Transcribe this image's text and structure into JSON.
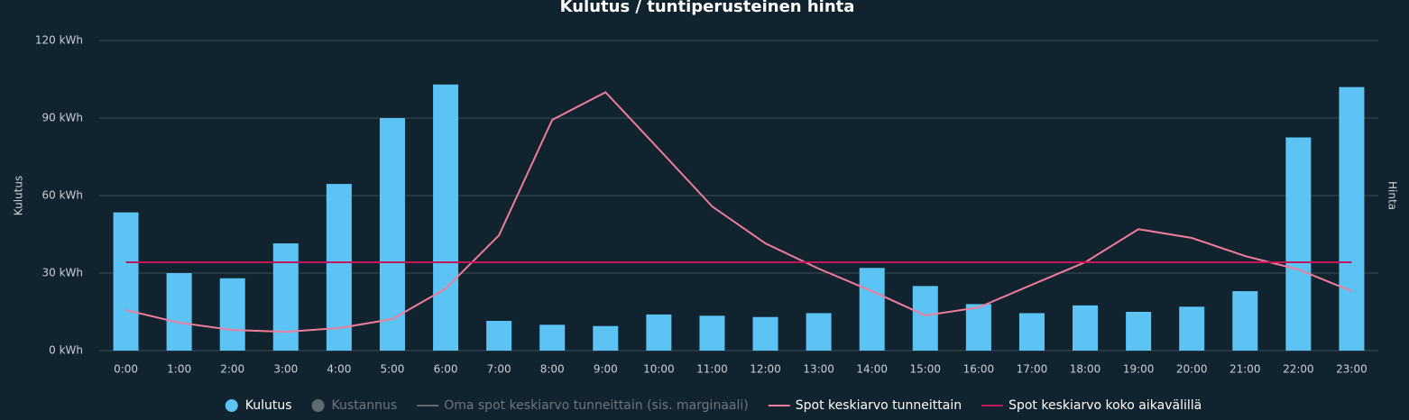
{
  "chart_data": {
    "type": "bar",
    "title": "Kulutus / tuntiperusteinen hinta",
    "y_label": "Kulutus",
    "y2_label": "Hinta",
    "categories": [
      "0:00",
      "1:00",
      "2:00",
      "3:00",
      "4:00",
      "5:00",
      "6:00",
      "7:00",
      "8:00",
      "9:00",
      "10:00",
      "11:00",
      "12:00",
      "13:00",
      "14:00",
      "15:00",
      "16:00",
      "17:00",
      "18:00",
      "19:00",
      "20:00",
      "21:00",
      "22:00",
      "23:00"
    ],
    "ylim": [
      0,
      120
    ],
    "yticks": [
      {
        "value": 0,
        "label": "0 kWh"
      },
      {
        "value": 30,
        "label": "30 kWh"
      },
      {
        "value": 60,
        "label": "60 kWh"
      },
      {
        "value": 90,
        "label": "90 kWh"
      },
      {
        "value": 120,
        "label": "120 kWh"
      }
    ],
    "grid": true,
    "series": [
      {
        "name": "Kulutus",
        "type": "bar",
        "color": "#5bc4f5",
        "values": [
          53.5,
          30,
          28,
          41.5,
          64.5,
          90,
          103,
          11.5,
          10,
          9.5,
          14,
          13.5,
          13,
          14.5,
          32,
          25,
          18,
          14.5,
          17.5,
          15,
          17,
          23,
          82.5,
          102
        ]
      },
      {
        "name": "Kustannus",
        "type": "bar",
        "color": "#5f6b72",
        "visible": false
      },
      {
        "name": "Oma spot keskiarvo tunneittain (sis. marginaali)",
        "type": "line",
        "color": "#5f6b72",
        "visible": false
      },
      {
        "name": "Spot keskiarvo tunneittain",
        "type": "line",
        "color": "#f07c9a",
        "values": [
          15.7,
          10.8,
          8,
          7.3,
          8.7,
          12.2,
          24,
          44.6,
          89.3,
          100,
          78,
          55.8,
          41.5,
          31.7,
          23,
          13.6,
          16.7,
          25.5,
          34.2,
          47,
          43.6,
          36.6,
          31.4,
          23
        ]
      },
      {
        "name": "Spot keskiarvo koko aikavälillä",
        "type": "line",
        "color": "#c2185b",
        "values": [
          34.2,
          34.2,
          34.2,
          34.2,
          34.2,
          34.2,
          34.2,
          34.2,
          34.2,
          34.2,
          34.2,
          34.2,
          34.2,
          34.2,
          34.2,
          34.2,
          34.2,
          34.2,
          34.2,
          34.2,
          34.2,
          34.2,
          34.2,
          34.2
        ]
      }
    ]
  }
}
